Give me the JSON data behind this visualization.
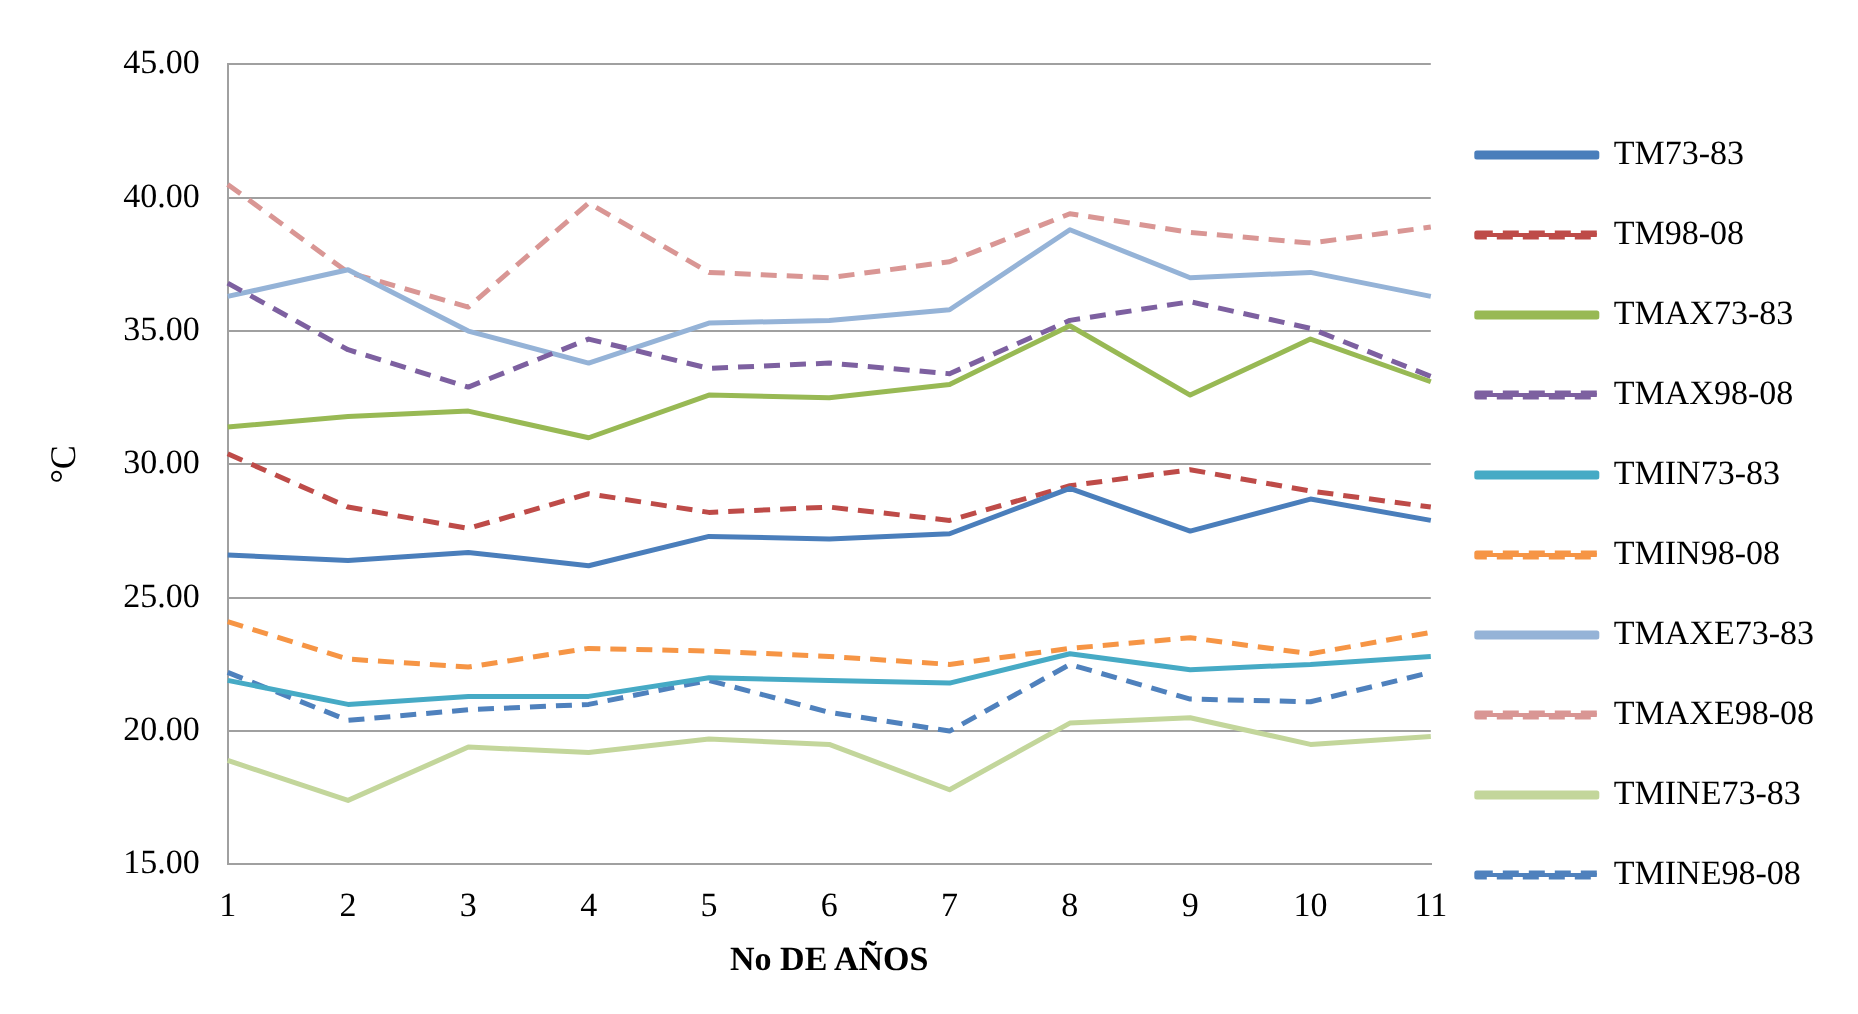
{
  "chart_data": {
    "type": "line",
    "xlabel": "No DE AÑOS",
    "ylabel": "°C",
    "categories": [
      "1",
      "2",
      "3",
      "4",
      "5",
      "6",
      "7",
      "8",
      "9",
      "10",
      "11"
    ],
    "ylim": [
      15,
      45
    ],
    "yticks": [
      {
        "value": 15,
        "label": "15.00"
      },
      {
        "value": 20,
        "label": "20.00"
      },
      {
        "value": 25,
        "label": "25.00"
      },
      {
        "value": 30,
        "label": "30.00"
      },
      {
        "value": 35,
        "label": "35.00"
      },
      {
        "value": 40,
        "label": "40.00"
      },
      {
        "value": 45,
        "label": "45.00"
      }
    ],
    "grid": "y",
    "legend": "right",
    "marker": "none",
    "series": [
      {
        "name": "TM73-83",
        "color": "#4a7ebb",
        "line_style": "solid",
        "values": [
          26.6,
          26.4,
          26.7,
          26.2,
          27.3,
          27.2,
          27.4,
          29.1,
          27.5,
          28.7,
          27.9
        ]
      },
      {
        "name": "TM98-08",
        "color": "#be4b48",
        "line_style": "dashed",
        "values": [
          30.4,
          28.4,
          27.6,
          28.9,
          28.2,
          28.4,
          27.9,
          29.2,
          29.8,
          29.0,
          28.4
        ]
      },
      {
        "name": "TMAX73-83",
        "color": "#98b954",
        "line_style": "solid",
        "values": [
          31.4,
          31.8,
          32.0,
          31.0,
          32.6,
          32.5,
          33.0,
          35.2,
          32.6,
          34.7,
          33.1
        ]
      },
      {
        "name": "TMAX98-08",
        "color": "#7d60a0",
        "line_style": "dashed",
        "values": [
          36.8,
          34.3,
          32.9,
          34.7,
          33.6,
          33.8,
          33.4,
          35.4,
          36.1,
          35.1,
          33.3
        ]
      },
      {
        "name": "TMIN73-83",
        "color": "#46aac5",
        "line_style": "solid",
        "values": [
          21.9,
          21.0,
          21.3,
          21.3,
          22.0,
          21.9,
          21.8,
          22.9,
          22.3,
          22.5,
          22.8
        ]
      },
      {
        "name": "TMIN98-08",
        "color": "#f69545",
        "line_style": "dashed",
        "values": [
          24.1,
          22.7,
          22.4,
          23.1,
          23.0,
          22.8,
          22.5,
          23.1,
          23.5,
          22.9,
          23.7
        ]
      },
      {
        "name": "TMAXE73-83",
        "color": "#95b3d7",
        "line_style": "solid",
        "values": [
          36.3,
          37.3,
          35.0,
          33.8,
          35.3,
          35.4,
          35.8,
          38.8,
          37.0,
          37.2,
          36.3
        ]
      },
      {
        "name": "TMAXE98-08",
        "color": "#d99694",
        "line_style": "dashed",
        "values": [
          40.5,
          37.2,
          35.9,
          39.8,
          37.2,
          37.0,
          37.6,
          39.4,
          38.7,
          38.3,
          38.9
        ]
      },
      {
        "name": "TMINE73-83",
        "color": "#c3d69b",
        "line_style": "solid",
        "values": [
          18.9,
          17.4,
          19.4,
          19.2,
          19.7,
          19.5,
          17.8,
          20.3,
          20.5,
          19.5,
          19.8
        ]
      },
      {
        "name": "TMINE98-08",
        "color": "#4f81bd",
        "line_style": "dashed",
        "values": [
          22.2,
          20.4,
          20.8,
          21.0,
          21.9,
          20.7,
          20.0,
          22.5,
          21.2,
          21.1,
          22.2
        ]
      }
    ]
  }
}
